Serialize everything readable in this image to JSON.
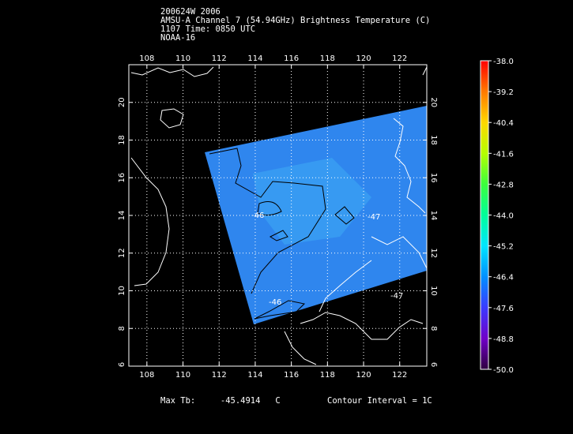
{
  "header": {
    "line1": "200624W 2006",
    "line2": "AMSU-A Channel 7 (54.94GHz) Brightness Temperature (C)",
    "line3": "1107 Time: 0850 UTC",
    "line4": "NOAA-16"
  },
  "map": {
    "lon_min": 107,
    "lon_max": 123.5,
    "lat_min": 6,
    "lat_max": 22,
    "lon_ticks": [
      108,
      110,
      112,
      114,
      116,
      118,
      120,
      122
    ],
    "lon_labels": [
      "108",
      "110",
      "112",
      "114",
      "116",
      "118",
      "120",
      "122"
    ],
    "lat_ticks": [
      8,
      10,
      12,
      14,
      16,
      18,
      20
    ],
    "lat_labels": [
      "8",
      "10",
      "12",
      "14",
      "16",
      "18",
      "20"
    ],
    "lat_outer_labels": [
      "6"
    ],
    "grid": true,
    "swath_color": "#2f8bf0",
    "coast_color": "#ffffff",
    "contour_labels": [
      "-46",
      "-46",
      "-47",
      "-47"
    ]
  },
  "colorbar": {
    "labels": [
      "-38.0",
      "-39.2",
      "-40.4",
      "-41.6",
      "-42.8",
      "-44.0",
      "-45.2",
      "-46.4",
      "-47.6",
      "-48.8",
      "-50.0"
    ],
    "min": -50.0,
    "max": -38.0,
    "colors": [
      "#ff0000",
      "#ff8000",
      "#ffd000",
      "#c0ff00",
      "#40ff40",
      "#00ff90",
      "#00e0ff",
      "#0080ff",
      "#4030ff",
      "#7000c0",
      "#400060"
    ]
  },
  "footer": {
    "max_tb_label": "Max Tb:",
    "max_tb_value": "-45.4914",
    "max_tb_unit": "C",
    "contour_interval": "Contour Interval = 1C"
  }
}
